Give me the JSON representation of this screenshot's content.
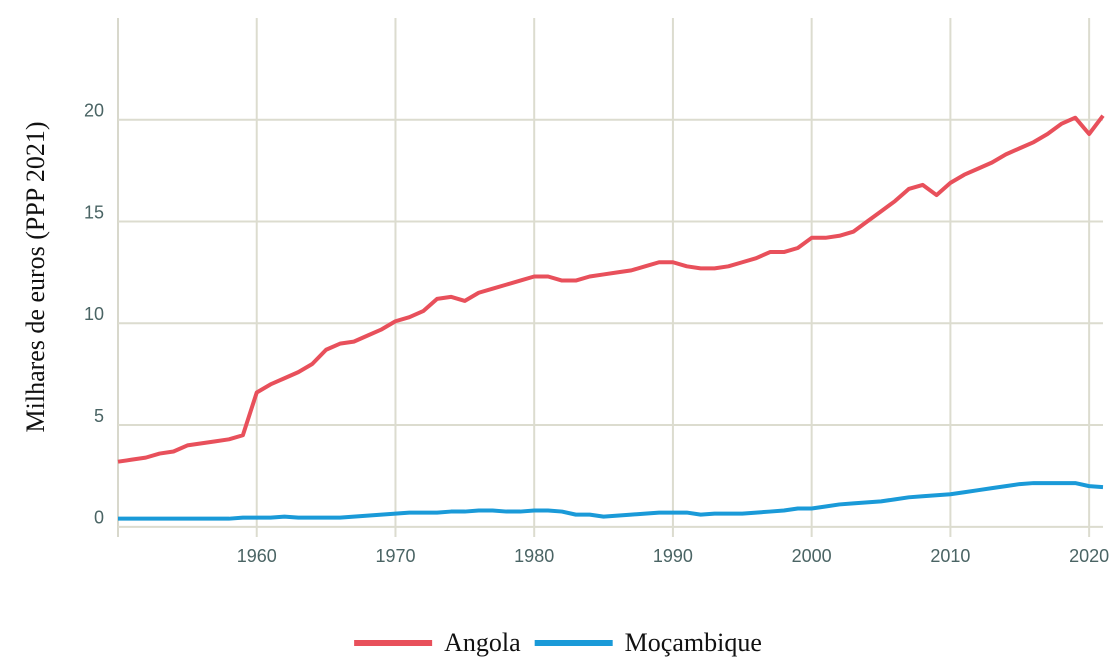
{
  "chart_data": {
    "type": "line",
    "y_label": "Milhares de euros (PPP 2021)",
    "x": [
      1950,
      1951,
      1952,
      1953,
      1954,
      1955,
      1956,
      1957,
      1958,
      1959,
      1960,
      1961,
      1962,
      1963,
      1964,
      1965,
      1966,
      1967,
      1968,
      1969,
      1970,
      1971,
      1972,
      1973,
      1974,
      1975,
      1976,
      1977,
      1978,
      1979,
      1980,
      1981,
      1982,
      1983,
      1984,
      1985,
      1986,
      1987,
      1988,
      1989,
      1990,
      1991,
      1992,
      1993,
      1994,
      1995,
      1996,
      1997,
      1998,
      1999,
      2000,
      2001,
      2002,
      2003,
      2004,
      2005,
      2006,
      2007,
      2008,
      2009,
      2010,
      2011,
      2012,
      2013,
      2014,
      2015,
      2016,
      2017,
      2018,
      2019,
      2020,
      2021
    ],
    "series": [
      {
        "name": "Angola",
        "color": "#e8505b",
        "values": [
          3.2,
          3.3,
          3.4,
          3.6,
          3.7,
          4.0,
          4.1,
          4.2,
          4.3,
          4.5,
          6.6,
          7.0,
          7.3,
          7.6,
          8.0,
          8.7,
          9.0,
          9.1,
          9.4,
          9.7,
          10.1,
          10.3,
          10.6,
          11.2,
          11.3,
          11.1,
          11.5,
          11.7,
          11.9,
          12.1,
          12.3,
          12.3,
          12.1,
          12.1,
          12.3,
          12.4,
          12.5,
          12.6,
          12.8,
          13.0,
          13.0,
          12.8,
          12.7,
          12.7,
          12.8,
          13.0,
          13.2,
          13.5,
          13.5,
          13.7,
          14.2,
          14.2,
          14.3,
          14.5,
          15.0,
          15.5,
          16.0,
          16.6,
          16.8,
          16.3,
          16.9,
          17.3,
          17.6,
          17.9,
          18.3,
          18.6,
          18.9,
          19.3,
          19.8,
          20.1,
          19.3,
          20.2
        ]
      },
      {
        "name": "Moçambique",
        "color": "#1a9ad8",
        "values": [
          0.4,
          0.4,
          0.4,
          0.4,
          0.4,
          0.4,
          0.4,
          0.4,
          0.4,
          0.45,
          0.45,
          0.45,
          0.5,
          0.45,
          0.45,
          0.45,
          0.45,
          0.5,
          0.55,
          0.6,
          0.65,
          0.7,
          0.7,
          0.7,
          0.75,
          0.75,
          0.8,
          0.8,
          0.75,
          0.75,
          0.8,
          0.8,
          0.75,
          0.6,
          0.6,
          0.5,
          0.55,
          0.6,
          0.65,
          0.7,
          0.7,
          0.7,
          0.6,
          0.65,
          0.65,
          0.65,
          0.7,
          0.75,
          0.8,
          0.9,
          0.9,
          1.0,
          1.1,
          1.15,
          1.2,
          1.25,
          1.35,
          1.45,
          1.5,
          1.55,
          1.6,
          1.7,
          1.8,
          1.9,
          2.0,
          2.1,
          2.15,
          2.15,
          2.15,
          2.15,
          2.0,
          1.95
        ]
      }
    ],
    "xlim": [
      1950,
      2021
    ],
    "xticks": [
      1960,
      1970,
      1980,
      1990,
      2000,
      2010,
      2020
    ],
    "ylim": [
      -0.5,
      25
    ],
    "yticks": [
      0,
      5,
      10,
      15,
      20
    ],
    "grid": true,
    "legend": "bottom"
  }
}
